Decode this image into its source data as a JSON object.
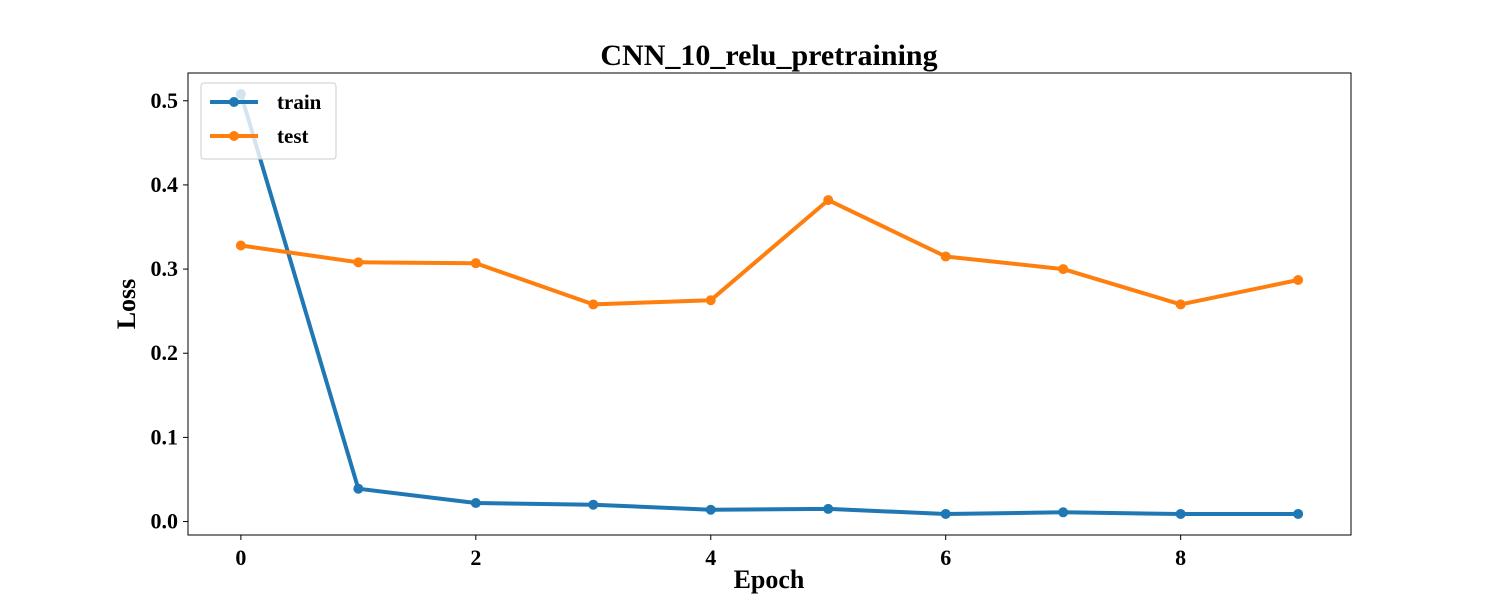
{
  "chart_data": {
    "type": "line",
    "title": "CNN_10_relu_pretraining",
    "xlabel": "Epoch",
    "ylabel": "Loss",
    "x": [
      0,
      1,
      2,
      3,
      4,
      5,
      6,
      7,
      8,
      9
    ],
    "xlim": [
      -0.45,
      9.45
    ],
    "ylim": [
      -0.016,
      0.533
    ],
    "xticks": [
      0,
      2,
      4,
      6,
      8
    ],
    "xtick_labels": [
      "0",
      "2",
      "4",
      "6",
      "8"
    ],
    "yticks": [
      0.0,
      0.1,
      0.2,
      0.3,
      0.4,
      0.5
    ],
    "ytick_labels": [
      "0.0",
      "0.1",
      "0.2",
      "0.3",
      "0.4",
      "0.5"
    ],
    "grid": false,
    "legend_position": "upper-left",
    "series": [
      {
        "name": "train",
        "color": "#1f77b4",
        "values": [
          0.508,
          0.039,
          0.022,
          0.02,
          0.014,
          0.015,
          0.009,
          0.011,
          0.009,
          0.009
        ]
      },
      {
        "name": "test",
        "color": "#ff7f0e",
        "values": [
          0.328,
          0.308,
          0.307,
          0.258,
          0.263,
          0.382,
          0.315,
          0.3,
          0.258,
          0.287
        ]
      }
    ]
  }
}
